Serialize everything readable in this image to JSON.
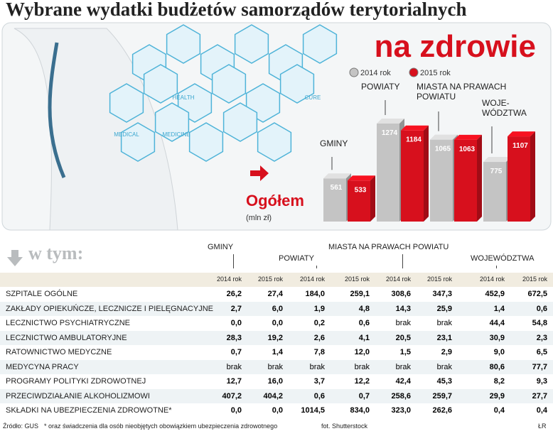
{
  "header": {
    "title": "Wybrane wydatki budżetów samorządów terytorialnych"
  },
  "illustration": {
    "labels": [
      "HEALTH",
      "CURE",
      "MEDICAL",
      "MEDICINE"
    ]
  },
  "chart_data": {
    "type": "bar",
    "title": "na zdrowie",
    "subtitle": "Ogółem",
    "unit": "(mln zł)",
    "categories": [
      "GMINY",
      "POWIATY",
      "MIASTA NA PRAWACH\nPOWIATU",
      "WOJE-\nWÓDZTWA"
    ],
    "series": [
      {
        "name": "2014 rok",
        "color": "#c4c4c4",
        "values": [
          561,
          1274,
          1065,
          775
        ]
      },
      {
        "name": "2015 rok",
        "color": "#d7101d",
        "values": [
          533,
          1184,
          1063,
          1107
        ]
      }
    ]
  },
  "table": {
    "caption": "w tym:",
    "groups": [
      "GMINY",
      "POWIATY",
      "MIASTA NA PRAWACH POWIATU",
      "WOJEWÓDZTWA"
    ],
    "columns": [
      "2014 rok",
      "2015 rok",
      "2014 rok",
      "2015 rok",
      "2014 rok",
      "2015 rok",
      "2014 rok",
      "2015 rok"
    ],
    "rows": [
      [
        "SZPITALE OGÓLNE",
        "26,2",
        "27,4",
        "184,0",
        "259,1",
        "308,6",
        "347,3",
        "452,9",
        "672,5"
      ],
      [
        "ZAKŁADY OPIEKUŃCZE, LECZNICZE I PIELĘGNACYJNE",
        "2,7",
        "6,0",
        "1,9",
        "4,8",
        "14,3",
        "25,9",
        "1,4",
        "0,6"
      ],
      [
        "LECZNICTWO PSYCHIATRYCZNE",
        "0,0",
        "0,0",
        "0,2",
        "0,6",
        "brak",
        "brak",
        "44,4",
        "54,8"
      ],
      [
        "LECZNICTWO AMBULATORYJNE",
        "28,3",
        "19,2",
        "2,6",
        "4,1",
        "20,5",
        "23,1",
        "30,9",
        "2,3"
      ],
      [
        "RATOWNICTWO MEDYCZNE",
        "0,7",
        "1,4",
        "7,8",
        "12,0",
        "1,5",
        "2,9",
        "9,0",
        "6,5"
      ],
      [
        "MEDYCYNA PRACY",
        "brak",
        "brak",
        "brak",
        "brak",
        "brak",
        "brak",
        "80,6",
        "77,7"
      ],
      [
        "PROGRAMY POLITYKI ZDROWOTNEJ",
        "12,7",
        "16,0",
        "3,7",
        "12,2",
        "42,4",
        "45,3",
        "8,2",
        "9,3"
      ],
      [
        "PRZECIWDZIAŁANIE ALKOHOLIZMOWI",
        "407,2",
        "404,2",
        "0,6",
        "0,7",
        "258,6",
        "259,7",
        "29,9",
        "27,7"
      ],
      [
        "SKŁADKI NA UBEZPIECZENIA ZDROWOTNE*",
        "0,0",
        "0,0",
        "1014,5",
        "834,0",
        "323,0",
        "262,6",
        "0,4",
        "0,4"
      ]
    ]
  },
  "footer": {
    "source": "Źródło: GUS",
    "note": "* oraz świadczenia dla osób nieobjętych obowiązkiem ubezpieczenia zdrowotnego",
    "photo": "fot. Shutterstock",
    "author": "ŁR"
  }
}
